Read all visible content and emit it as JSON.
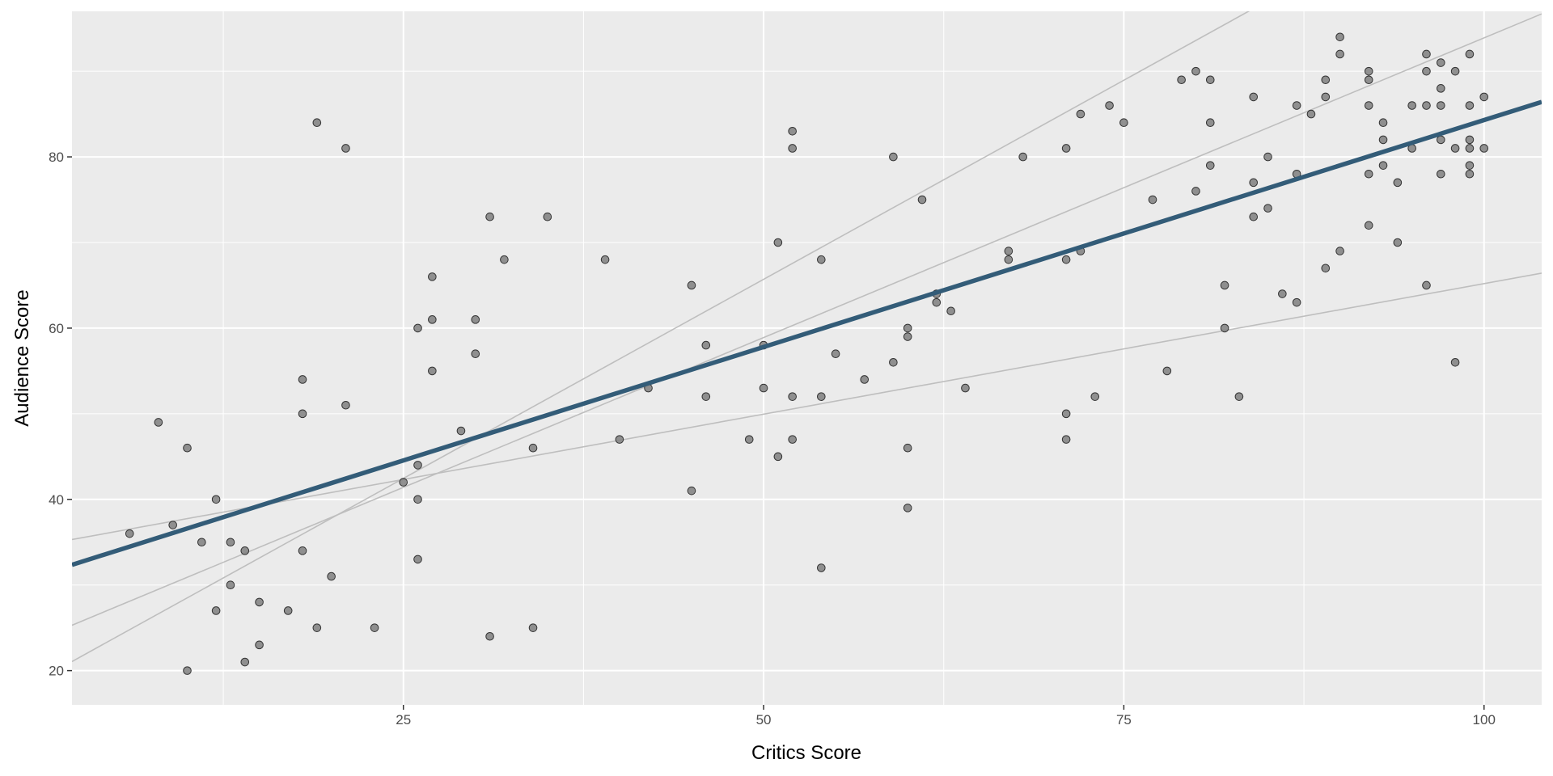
{
  "chart_data": {
    "type": "scatter",
    "title": "",
    "xlabel": "Critics Score",
    "ylabel": "Audience Score",
    "xlim": [
      2,
      104
    ],
    "ylim": [
      16,
      97
    ],
    "x_ticks": [
      25,
      50,
      75,
      100
    ],
    "y_ticks": [
      20,
      40,
      60,
      80
    ],
    "grid": true,
    "legend": "none",
    "colors": {
      "panel": "#EBEBEB",
      "grid": "#FFFFFF",
      "points": "#7F7F7F",
      "point_outline": "#333333",
      "fit_line": "#335C78",
      "sample_lines": "#BEBEBE"
    },
    "points": [
      [
        6,
        36
      ],
      [
        8,
        49
      ],
      [
        9,
        37
      ],
      [
        10,
        46
      ],
      [
        10,
        20
      ],
      [
        11,
        35
      ],
      [
        12,
        40
      ],
      [
        12,
        27
      ],
      [
        13,
        35
      ],
      [
        13,
        30
      ],
      [
        14,
        34
      ],
      [
        14,
        21
      ],
      [
        15,
        28
      ],
      [
        15,
        23
      ],
      [
        17,
        27
      ],
      [
        18,
        54
      ],
      [
        18,
        50
      ],
      [
        18,
        34
      ],
      [
        19,
        84
      ],
      [
        19,
        25
      ],
      [
        20,
        31
      ],
      [
        21,
        51
      ],
      [
        21,
        81
      ],
      [
        23,
        25
      ],
      [
        25,
        42
      ],
      [
        26,
        60
      ],
      [
        26,
        44
      ],
      [
        26,
        40
      ],
      [
        26,
        33
      ],
      [
        27,
        66
      ],
      [
        27,
        61
      ],
      [
        27,
        55
      ],
      [
        29,
        48
      ],
      [
        30,
        61
      ],
      [
        30,
        57
      ],
      [
        31,
        73
      ],
      [
        31,
        24
      ],
      [
        32,
        68
      ],
      [
        34,
        46
      ],
      [
        34,
        25
      ],
      [
        35,
        73
      ],
      [
        39,
        68
      ],
      [
        40,
        47
      ],
      [
        42,
        53
      ],
      [
        45,
        65
      ],
      [
        45,
        41
      ],
      [
        46,
        58
      ],
      [
        46,
        52
      ],
      [
        49,
        47
      ],
      [
        50,
        58
      ],
      [
        50,
        53
      ],
      [
        51,
        70
      ],
      [
        51,
        45
      ],
      [
        52,
        83
      ],
      [
        52,
        81
      ],
      [
        52,
        52
      ],
      [
        52,
        47
      ],
      [
        54,
        68
      ],
      [
        54,
        52
      ],
      [
        54,
        32
      ],
      [
        55,
        57
      ],
      [
        57,
        54
      ],
      [
        59,
        80
      ],
      [
        59,
        56
      ],
      [
        60,
        60
      ],
      [
        60,
        59
      ],
      [
        60,
        46
      ],
      [
        60,
        39
      ],
      [
        61,
        75
      ],
      [
        62,
        64
      ],
      [
        62,
        63
      ],
      [
        63,
        62
      ],
      [
        64,
        53
      ],
      [
        67,
        69
      ],
      [
        67,
        68
      ],
      [
        68,
        80
      ],
      [
        71,
        81
      ],
      [
        71,
        68
      ],
      [
        71,
        50
      ],
      [
        71,
        47
      ],
      [
        72,
        85
      ],
      [
        72,
        69
      ],
      [
        73,
        52
      ],
      [
        74,
        86
      ],
      [
        75,
        84
      ],
      [
        77,
        75
      ],
      [
        78,
        55
      ],
      [
        79,
        89
      ],
      [
        80,
        90
      ],
      [
        80,
        76
      ],
      [
        81,
        89
      ],
      [
        81,
        84
      ],
      [
        81,
        79
      ],
      [
        82,
        65
      ],
      [
        82,
        60
      ],
      [
        83,
        52
      ],
      [
        84,
        87
      ],
      [
        84,
        77
      ],
      [
        84,
        73
      ],
      [
        85,
        80
      ],
      [
        85,
        74
      ],
      [
        86,
        64
      ],
      [
        87,
        86
      ],
      [
        87,
        78
      ],
      [
        87,
        63
      ],
      [
        88,
        85
      ],
      [
        89,
        89
      ],
      [
        89,
        87
      ],
      [
        89,
        67
      ],
      [
        90,
        94
      ],
      [
        90,
        92
      ],
      [
        90,
        69
      ],
      [
        92,
        90
      ],
      [
        92,
        89
      ],
      [
        92,
        86
      ],
      [
        92,
        78
      ],
      [
        92,
        72
      ],
      [
        93,
        84
      ],
      [
        93,
        82
      ],
      [
        93,
        79
      ],
      [
        94,
        77
      ],
      [
        94,
        70
      ],
      [
        95,
        86
      ],
      [
        95,
        81
      ],
      [
        96,
        92
      ],
      [
        96,
        90
      ],
      [
        96,
        86
      ],
      [
        96,
        65
      ],
      [
        97,
        91
      ],
      [
        97,
        88
      ],
      [
        97,
        86
      ],
      [
        97,
        82
      ],
      [
        97,
        78
      ],
      [
        98,
        90
      ],
      [
        98,
        81
      ],
      [
        98,
        56
      ],
      [
        99,
        92
      ],
      [
        99,
        86
      ],
      [
        99,
        82
      ],
      [
        99,
        81
      ],
      [
        99,
        79
      ],
      [
        99,
        78
      ],
      [
        100,
        87
      ],
      [
        100,
        81
      ]
    ],
    "fit_line": {
      "intercept": 31.3,
      "slope": 0.53
    },
    "sample_lines": [
      {
        "intercept": 34.7,
        "slope": 0.305
      },
      {
        "intercept": 23.9,
        "slope": 0.7
      },
      {
        "intercept": 19.2,
        "slope": 0.93
      }
    ]
  }
}
